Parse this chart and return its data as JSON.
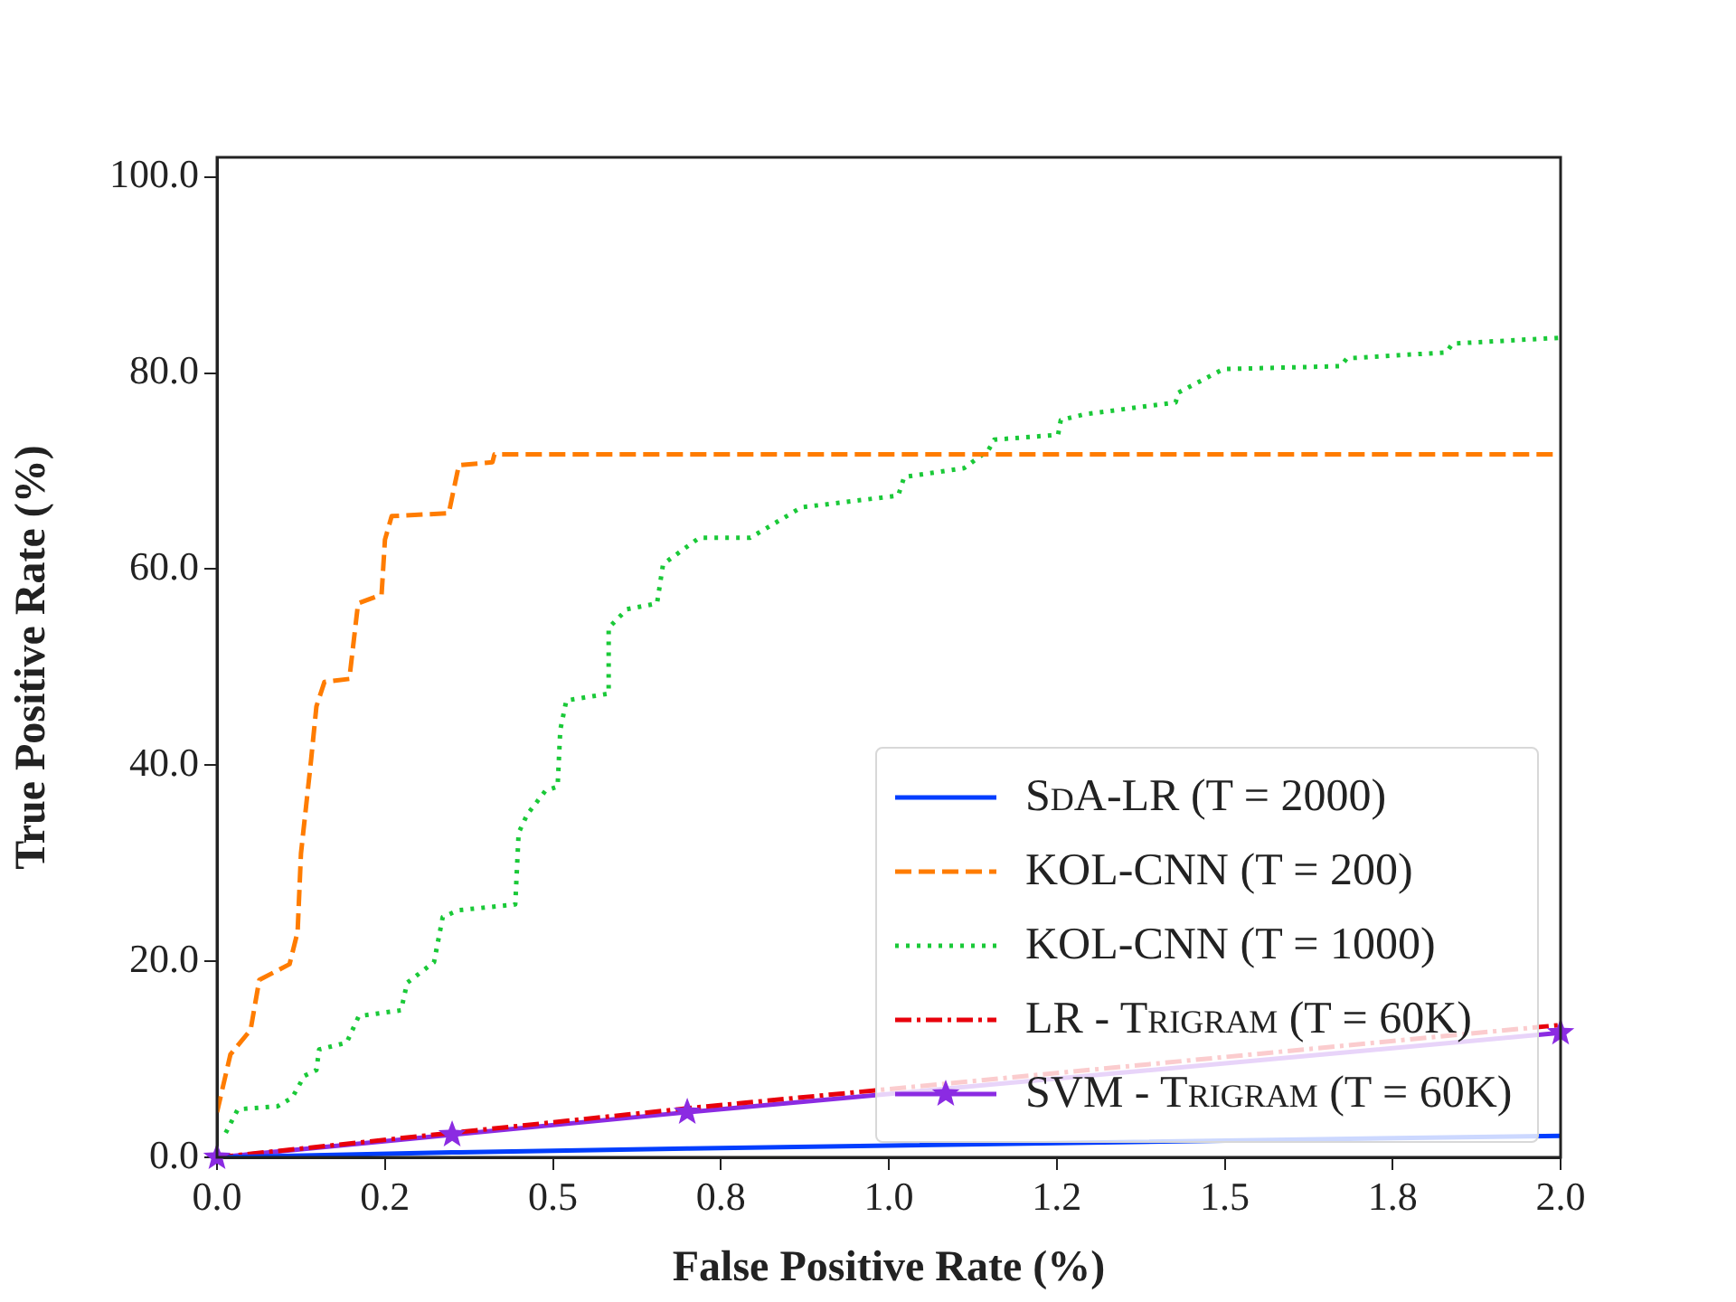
{
  "chart_data": {
    "type": "line",
    "xlabel": "False Positive Rate (%)",
    "ylabel": "True Positive Rate (%)",
    "xlim": [
      0,
      2.0
    ],
    "xticks": [
      {
        "value": 0,
        "label": "0.0"
      },
      {
        "value": 0.25,
        "label": "0.2"
      },
      {
        "value": 0.5,
        "label": "0.5"
      },
      {
        "value": 0.75,
        "label": "0.8"
      },
      {
        "value": 1.0,
        "label": "1.0"
      },
      {
        "value": 1.25,
        "label": "1.2"
      },
      {
        "value": 1.5,
        "label": "1.5"
      },
      {
        "value": 1.75,
        "label": "1.8"
      },
      {
        "value": 2.0,
        "label": "2.0"
      }
    ],
    "ylim": [
      0,
      102
    ],
    "yticks": [
      {
        "value": 0,
        "label": "0.0"
      },
      {
        "value": 20,
        "label": "20.0"
      },
      {
        "value": 40,
        "label": "40.0"
      },
      {
        "value": 60,
        "label": "60.0"
      },
      {
        "value": 80,
        "label": "80.0"
      },
      {
        "value": 100,
        "label": "100.0"
      }
    ],
    "grid": false,
    "legend": "bottom right",
    "series": [
      {
        "name": "SdA-LR (T = 2000)",
        "color": "#023eff",
        "line_style": "solid",
        "x": [
          0,
          0.35,
          0.7,
          2.0
        ],
        "values": [
          0,
          0.5,
          0.9,
          2.2
        ]
      },
      {
        "name": "KOL-CNN (T = 200)",
        "color": "#ff7c00",
        "line_style": "dashed",
        "x": [
          0,
          0.02,
          0.05,
          0.063,
          0.108,
          0.12,
          0.125,
          0.14,
          0.148,
          0.16,
          0.197,
          0.21,
          0.245,
          0.25,
          0.26,
          0.345,
          0.36,
          0.41,
          0.413,
          2.0
        ],
        "values": [
          4.6,
          10.5,
          13,
          18.1,
          19.7,
          23,
          31,
          40.5,
          46,
          48.5,
          48.8,
          56.5,
          57.4,
          63,
          65.4,
          65.7,
          70.6,
          70.9,
          71.7,
          71.7
        ]
      },
      {
        "name": "KOL-CNN (T = 1000)",
        "color": "#1ac938",
        "line_style": "dotted",
        "x": [
          0.013,
          0.031,
          0.09,
          0.112,
          0.13,
          0.148,
          0.152,
          0.193,
          0.211,
          0.274,
          0.283,
          0.323,
          0.336,
          0.359,
          0.444,
          0.449,
          0.462,
          0.489,
          0.507,
          0.511,
          0.52,
          0.583,
          0.583,
          0.61,
          0.655,
          0.664,
          0.718,
          0.794,
          0.87,
          1.014,
          1.023,
          1.112,
          1.148,
          1.157,
          1.252,
          1.256,
          1.292,
          1.427,
          1.431,
          1.498,
          1.673,
          1.682,
          1.83,
          1.839,
          2.0
        ],
        "values": [
          2.5,
          4.9,
          5.2,
          6.1,
          8.3,
          8.9,
          11.0,
          11.7,
          14.4,
          15.0,
          17.8,
          19.9,
          24.5,
          25.2,
          25.8,
          33.1,
          35.0,
          37.4,
          37.8,
          43.6,
          46.6,
          47.3,
          54.0,
          55.9,
          56.5,
          60.5,
          63.2,
          63.2,
          66.3,
          67.5,
          69.4,
          70.3,
          72.1,
          73.2,
          73.7,
          75.2,
          75.8,
          77.0,
          78.0,
          80.4,
          80.7,
          81.5,
          82.1,
          83.0,
          83.6
        ]
      },
      {
        "name": "LR - Trigram (T = 60K)",
        "color": "#e8000b",
        "line_style": "dashdot",
        "x": [
          0,
          0.35,
          0.7,
          2.0
        ],
        "values": [
          0,
          2.5,
          5.0,
          13.5
        ]
      },
      {
        "name": "SVM - Trigram (T = 60K)",
        "color": "#8b2be2",
        "line_style": "solid",
        "marker": "star",
        "x": [
          0,
          0.35,
          0.7,
          2.0
        ],
        "values": [
          0,
          2.3,
          4.6,
          12.7
        ]
      }
    ]
  }
}
